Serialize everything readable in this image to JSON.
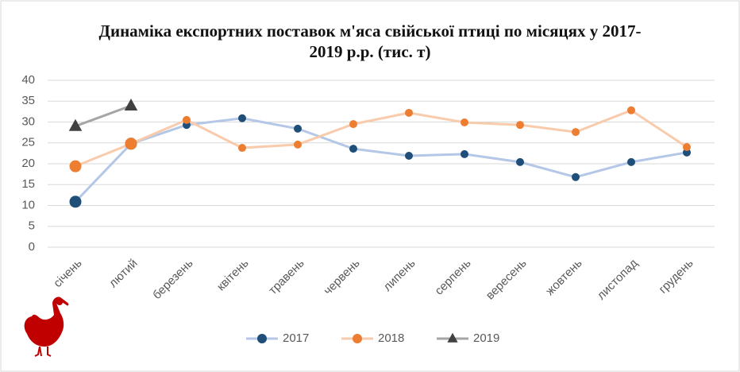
{
  "chart_data": {
    "type": "line",
    "title": "Динаміка експортних поставок м'яса свійської птиці по місяцях у 2017-2019 р.р. (тис. т)",
    "categories": [
      "січень",
      "лютий",
      "березень",
      "квітень",
      "травень",
      "червень",
      "липень",
      "серпень",
      "вересень",
      "жовтень",
      "листопад",
      "грудень"
    ],
    "series": [
      {
        "name": "2017",
        "color": "#b4c7e7",
        "marker_color": "#1f4e79",
        "marker": "circle",
        "values": [
          10.9,
          24.8,
          29.3,
          30.9,
          28.4,
          23.6,
          21.9,
          22.3,
          20.4,
          16.8,
          20.4,
          22.7
        ]
      },
      {
        "name": "2018",
        "color": "#f8cbad",
        "marker_color": "#ed7d31",
        "marker": "circle",
        "values": [
          19.4,
          24.8,
          30.5,
          23.8,
          24.6,
          29.5,
          32.2,
          29.9,
          29.3,
          27.6,
          32.8,
          24
        ]
      },
      {
        "name": "2019",
        "color": "#a5a5a5",
        "marker_color": "#404040",
        "marker": "triangle",
        "values": [
          29,
          33.9,
          null,
          null,
          null,
          null,
          null,
          null,
          null,
          null,
          null,
          null
        ]
      }
    ],
    "ylim": [
      0,
      40
    ],
    "yticks": [
      0,
      5,
      10,
      15,
      20,
      25,
      30,
      35,
      40
    ],
    "grid": true,
    "legend": "bottom"
  }
}
